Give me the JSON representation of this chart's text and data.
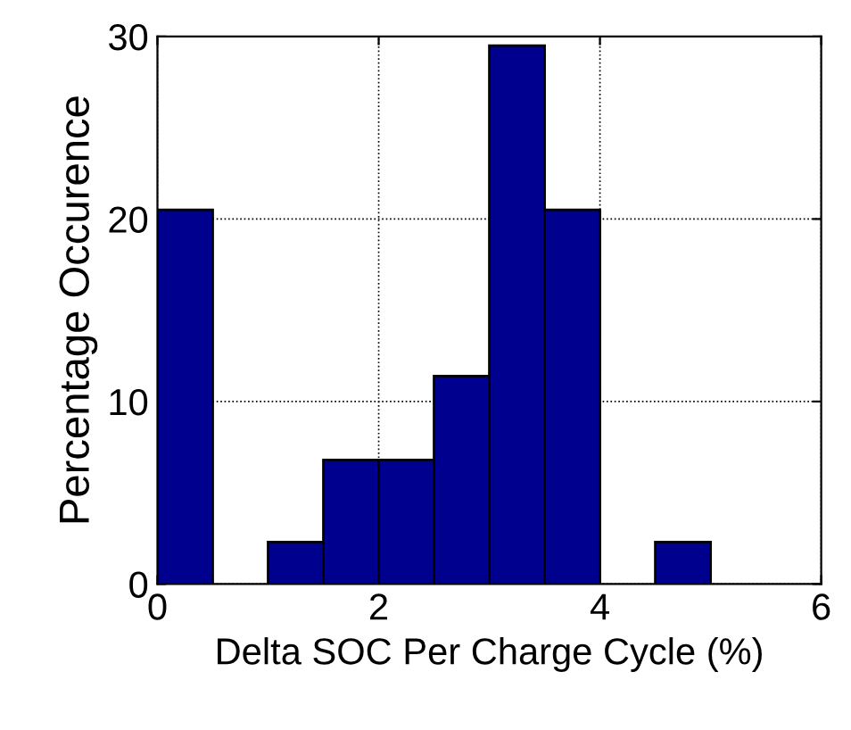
{
  "chart_data": {
    "type": "histogram",
    "xlabel": "Delta SOC Per Charge Cycle (%)",
    "ylabel": "Percentage Occurence",
    "bins": [
      0,
      0.5,
      1,
      1.5,
      2,
      2.5,
      3,
      3.5,
      4,
      4.5,
      5
    ],
    "values": [
      20.5,
      0,
      2.3,
      6.8,
      6.8,
      11.4,
      29.5,
      20.5,
      0,
      2.3
    ],
    "color": "#00008f",
    "xlim": [
      0,
      6
    ],
    "xticks": [
      0,
      2,
      4,
      6
    ],
    "ylim": [
      0,
      30
    ],
    "yticks": [
      0,
      10,
      20,
      30
    ],
    "grid": true,
    "line_style": "dotted"
  }
}
